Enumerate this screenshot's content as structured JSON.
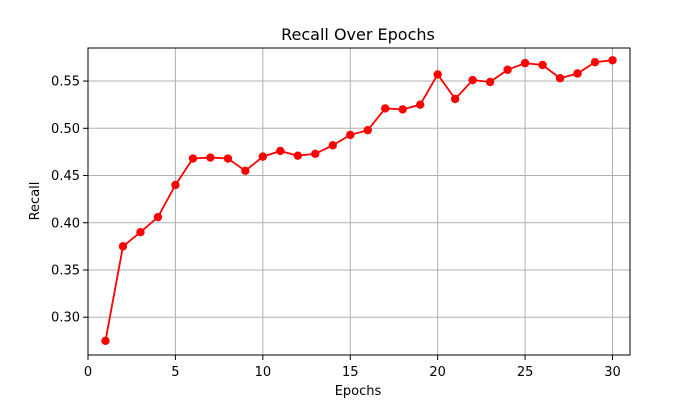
{
  "chart_data": {
    "type": "line",
    "title": "Recall Over Epochs",
    "xlabel": "Epochs",
    "ylabel": "Recall",
    "xlim": [
      0,
      31
    ],
    "ylim": [
      0.26,
      0.585
    ],
    "xticks": [
      0,
      5,
      10,
      15,
      20,
      25,
      30
    ],
    "yticks": [
      0.3,
      0.35,
      0.4,
      0.45,
      0.5,
      0.55
    ],
    "grid": true,
    "series": [
      {
        "color": "#ff0000",
        "x": [
          1,
          2,
          3,
          4,
          5,
          6,
          7,
          8,
          9,
          10,
          11,
          12,
          13,
          14,
          15,
          16,
          17,
          18,
          19,
          20,
          21,
          22,
          23,
          24,
          25,
          26,
          27,
          28,
          29,
          30
        ],
        "y": [
          0.275,
          0.375,
          0.39,
          0.406,
          0.44,
          0.468,
          0.469,
          0.468,
          0.455,
          0.47,
          0.476,
          0.471,
          0.473,
          0.482,
          0.493,
          0.498,
          0.521,
          0.52,
          0.525,
          0.557,
          0.531,
          0.551,
          0.549,
          0.562,
          0.569,
          0.567,
          0.553,
          0.558,
          0.57,
          0.572
        ]
      }
    ]
  }
}
